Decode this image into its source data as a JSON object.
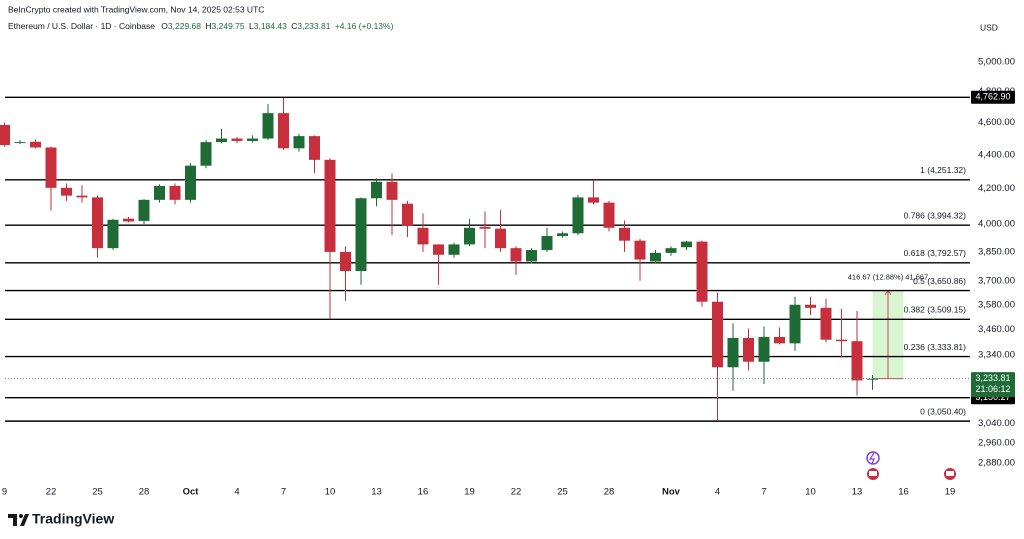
{
  "chart_data": {
    "type": "candlestick",
    "credit": "BeInCrypto created with TradingView.com, Nov 14, 2025 02:53 UTC",
    "symbol": "Ethereum / U.S. Dollar · 1D · Coinbase",
    "ohlc_legend": [
      {
        "label": "O",
        "value": "3,229.68"
      },
      {
        "label": "H",
        "value": "3,249.75"
      },
      {
        "label": "L",
        "value": "3,184.43"
      },
      {
        "label": "C",
        "value": "3,233.81"
      }
    ],
    "change": "+4.16 (+0.13%)",
    "currency": "USD",
    "brand": "TradingView",
    "up_color": "#1e6b35",
    "down_color": "#c62f3b",
    "log_scale": true,
    "grid": false,
    "categories": [
      "9",
      null,
      null,
      "22",
      null,
      null,
      "25",
      null,
      null,
      "28",
      null,
      null,
      "Oct",
      null,
      null,
      "4",
      null,
      null,
      "7",
      null,
      null,
      "10",
      null,
      null,
      "13",
      null,
      null,
      "16",
      null,
      null,
      "19",
      null,
      null,
      "22",
      null,
      null,
      "25",
      null,
      null,
      "28",
      null,
      null,
      null,
      "Nov",
      null,
      null,
      "4",
      null,
      null,
      "7",
      null,
      null,
      "10",
      null,
      null,
      "13",
      null,
      null,
      "16",
      null,
      null,
      "19"
    ],
    "open": [
      4585,
      4475,
      4480,
      4445,
      4205,
      4160,
      4150,
      3870,
      4030,
      4018,
      4136,
      4216,
      4136,
      4335,
      4478,
      4500,
      4485,
      4500,
      4660,
      4440,
      4515,
      4370,
      3850,
      3750,
      4145,
      4240,
      4114,
      3980,
      3890,
      3835,
      3890,
      3985,
      3975,
      3870,
      3800,
      3860,
      3935,
      3950,
      4150,
      4120,
      3980,
      3910,
      3800,
      3845,
      3875,
      3905,
      3595,
      3285,
      3420,
      3310,
      3425,
      3395,
      3580,
      3565,
      3412,
      3405,
      3229.68,
      null,
      null,
      null,
      null,
      null
    ],
    "high": [
      4600,
      4490,
      4495,
      4450,
      4230,
      4220,
      4160,
      4030,
      4040,
      4140,
      4225,
      4230,
      4350,
      4490,
      4560,
      4510,
      4520,
      4720,
      4760,
      4530,
      4520,
      4380,
      3880,
      4150,
      4260,
      4290,
      4130,
      4060,
      3890,
      3900,
      4030,
      4070,
      4080,
      3880,
      3870,
      3980,
      3960,
      4165,
      4250,
      4130,
      4020,
      3920,
      3860,
      3880,
      3910,
      3910,
      3640,
      3490,
      3465,
      3475,
      3470,
      3620,
      3620,
      3610,
      3560,
      3550,
      3249.75,
      null,
      null,
      null,
      null,
      null
    ],
    "low": [
      4450,
      4465,
      4440,
      4075,
      4130,
      4120,
      3820,
      3860,
      4010,
      3990,
      4120,
      4110,
      4120,
      4320,
      4470,
      4470,
      4475,
      4490,
      4430,
      4420,
      4290,
      3510,
      3600,
      3680,
      4100,
      3940,
      3930,
      3850,
      3680,
      3820,
      3880,
      3870,
      3850,
      3730,
      3790,
      3850,
      3925,
      3940,
      4110,
      3960,
      3850,
      3700,
      3790,
      3830,
      3860,
      3570,
      3055,
      3180,
      3270,
      3210,
      3390,
      3360,
      3530,
      3400,
      3330,
      3160,
      3184.43,
      null,
      null,
      null,
      null,
      null
    ],
    "close": [
      4460,
      4478,
      4445,
      4205,
      4160,
      4150,
      3870,
      4024,
      4015,
      4136,
      4216,
      4136,
      4335,
      4478,
      4500,
      4485,
      4500,
      4660,
      4440,
      4515,
      4370,
      3850,
      3750,
      4145,
      4240,
      4136,
      3990,
      3890,
      3835,
      3890,
      3980,
      3975,
      3870,
      3800,
      3860,
      3935,
      3950,
      4150,
      4120,
      3980,
      3910,
      3810,
      3845,
      3870,
      3905,
      3595,
      3285,
      3420,
      3310,
      3425,
      3395,
      3580,
      3565,
      3412,
      3405,
      3226,
      3233.81,
      null,
      null,
      null,
      null,
      null
    ],
    "ylim": [
      2813,
      5445
    ],
    "yticks": [
      {
        "value": 2880,
        "label": "2,880.00"
      },
      {
        "value": 2960,
        "label": "2,960.00"
      },
      {
        "value": 3040,
        "label": "3,040.00"
      },
      {
        "value": 3340,
        "label": "3,340.00"
      },
      {
        "value": 3460,
        "label": "3,460.00"
      },
      {
        "value": 3580,
        "label": "3,580.00"
      },
      {
        "value": 3700,
        "label": "3,700.00"
      },
      {
        "value": 3850,
        "label": "3,850.00"
      },
      {
        "value": 4000,
        "label": "4,000.00"
      },
      {
        "value": 4200,
        "label": "4,200.00"
      },
      {
        "value": 4400,
        "label": "4,400.00"
      },
      {
        "value": 4600,
        "label": "4,600.00"
      },
      {
        "value": 4800,
        "label": "4,800.00"
      },
      {
        "value": 5000,
        "label": "5,000.00"
      }
    ],
    "fib_levels": [
      {
        "value": 4251.32,
        "label": "1 (4,251.32)"
      },
      {
        "value": 3994.32,
        "label": "0.786 (3,994.32)"
      },
      {
        "value": 3792.57,
        "label": "0.618 (3,792.57)"
      },
      {
        "value": 3650.86,
        "label": "0.5 (3,650.86)"
      },
      {
        "value": 3509.15,
        "label": "0.382 (3,509.15)"
      },
      {
        "value": 3333.81,
        "label": "0.236 (3,333.81)"
      },
      {
        "value": 3050.4,
        "label": "0 (3,050.40)"
      }
    ],
    "levels": [
      {
        "value": 4762.9,
        "label": "4,762.90"
      },
      {
        "value": 3150.27,
        "label": "3,150.27"
      }
    ],
    "last_price": {
      "value": 3233.81,
      "label": "3,233.81",
      "countdown": "21:06:12"
    },
    "measure": {
      "from": 3233.81,
      "to": 3650.48,
      "label": "416.67 (12.88%) 41,667"
    }
  }
}
